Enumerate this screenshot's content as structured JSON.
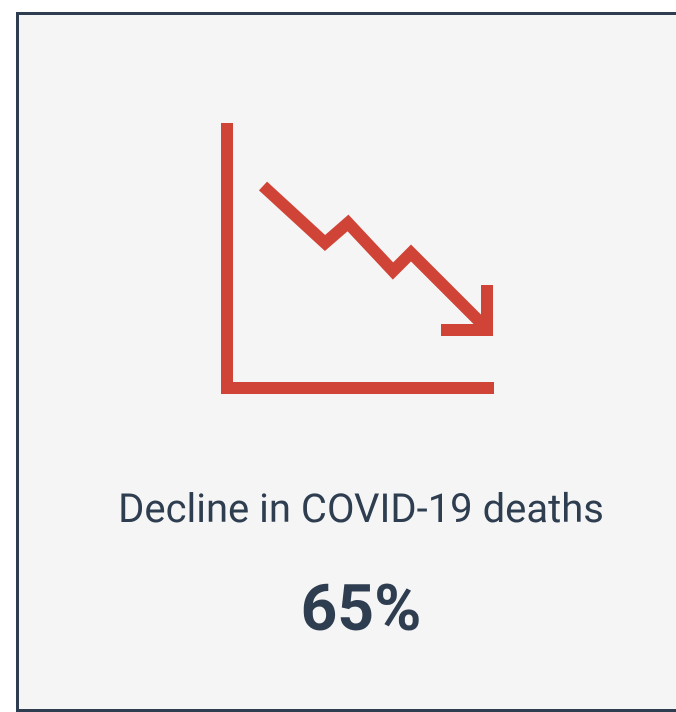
{
  "card": {
    "label": "Decline in COVID-19 deaths",
    "value": "65%"
  }
}
